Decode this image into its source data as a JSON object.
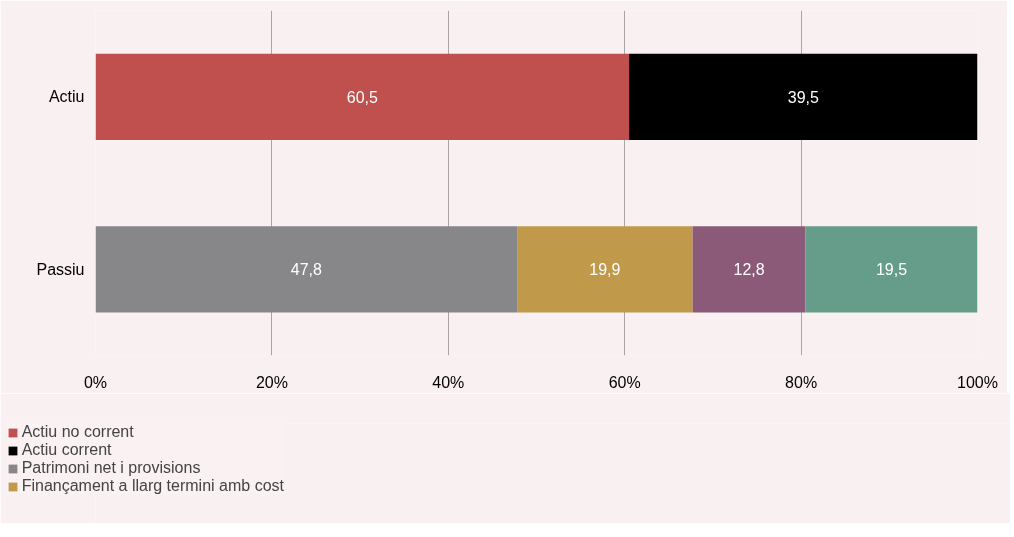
{
  "chart_data": {
    "type": "bar",
    "orientation": "horizontal",
    "stacked": true,
    "categories": [
      "Actiu",
      "Passiu"
    ],
    "xlim": [
      0,
      100
    ],
    "xticks": [
      {
        "value": 0,
        "label": "0%"
      },
      {
        "value": 20,
        "label": "20%"
      },
      {
        "value": 40,
        "label": "40%"
      },
      {
        "value": 60,
        "label": "60%"
      },
      {
        "value": 80,
        "label": "80%"
      },
      {
        "value": 100,
        "label": "100%"
      }
    ],
    "grid": "x",
    "legend": "bottom left",
    "series": [
      {
        "name": "Actiu no corrent",
        "color": "#c0504d",
        "values": [
          60.5,
          null
        ],
        "value_labels": [
          "60,5",
          null
        ]
      },
      {
        "name": "Actiu corrent",
        "color": "#000000",
        "values": [
          39.5,
          null
        ],
        "value_labels": [
          "39,5",
          null
        ]
      },
      {
        "name": "Patrimoni net i provisions",
        "color": "#87878a",
        "values": [
          null,
          47.8
        ],
        "value_labels": [
          null,
          "47,8"
        ]
      },
      {
        "name": "Finançament a llarg termini amb cost",
        "color": "#c09a4a",
        "values": [
          null,
          19.9
        ],
        "value_labels": [
          null,
          "19,9"
        ]
      },
      {
        "color": "#8b5a78",
        "values": [
          null,
          12.8
        ],
        "value_labels": [
          null,
          "12,8"
        ]
      },
      {
        "color": "#669c8a",
        "values": [
          null,
          19.5
        ],
        "value_labels": [
          null,
          "19,5"
        ]
      }
    ]
  }
}
